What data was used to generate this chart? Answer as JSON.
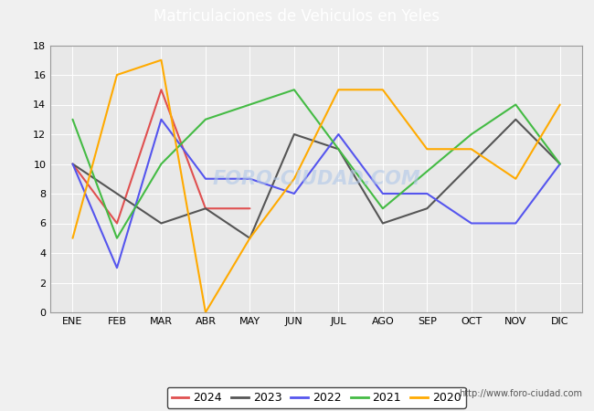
{
  "title": "Matriculaciones de Vehiculos en Yeles",
  "months": [
    "ENE",
    "FEB",
    "MAR",
    "ABR",
    "MAY",
    "JUN",
    "JUL",
    "AGO",
    "SEP",
    "OCT",
    "NOV",
    "DIC"
  ],
  "series": {
    "2024": [
      10,
      6,
      15,
      7,
      7,
      null,
      null,
      null,
      null,
      null,
      null,
      null
    ],
    "2023": [
      10,
      8,
      6,
      7,
      5,
      12,
      11,
      6,
      7,
      null,
      13,
      10
    ],
    "2022": [
      10,
      3,
      13,
      9,
      9,
      8,
      12,
      8,
      8,
      6,
      6,
      10
    ],
    "2021": [
      13,
      5,
      10,
      13,
      null,
      15,
      11,
      7,
      null,
      12,
      14,
      10
    ],
    "2020": [
      5,
      16,
      17,
      0,
      5,
      9,
      15,
      15,
      11,
      11,
      9,
      14
    ]
  },
  "colors": {
    "2024": "#e05050",
    "2023": "#555555",
    "2022": "#5555ee",
    "2021": "#44bb44",
    "2020": "#ffaa00"
  },
  "ylim": [
    0,
    18
  ],
  "yticks": [
    0,
    2,
    4,
    6,
    8,
    10,
    12,
    14,
    16,
    18
  ],
  "plot_bg_color": "#e8e8e8",
  "outer_bg_color": "#f0f0f0",
  "header_color": "#4a90d9",
  "title_color": "white",
  "watermark": "FORO-CIUDAD.COM",
  "url": "http://www.foro-ciudad.com"
}
